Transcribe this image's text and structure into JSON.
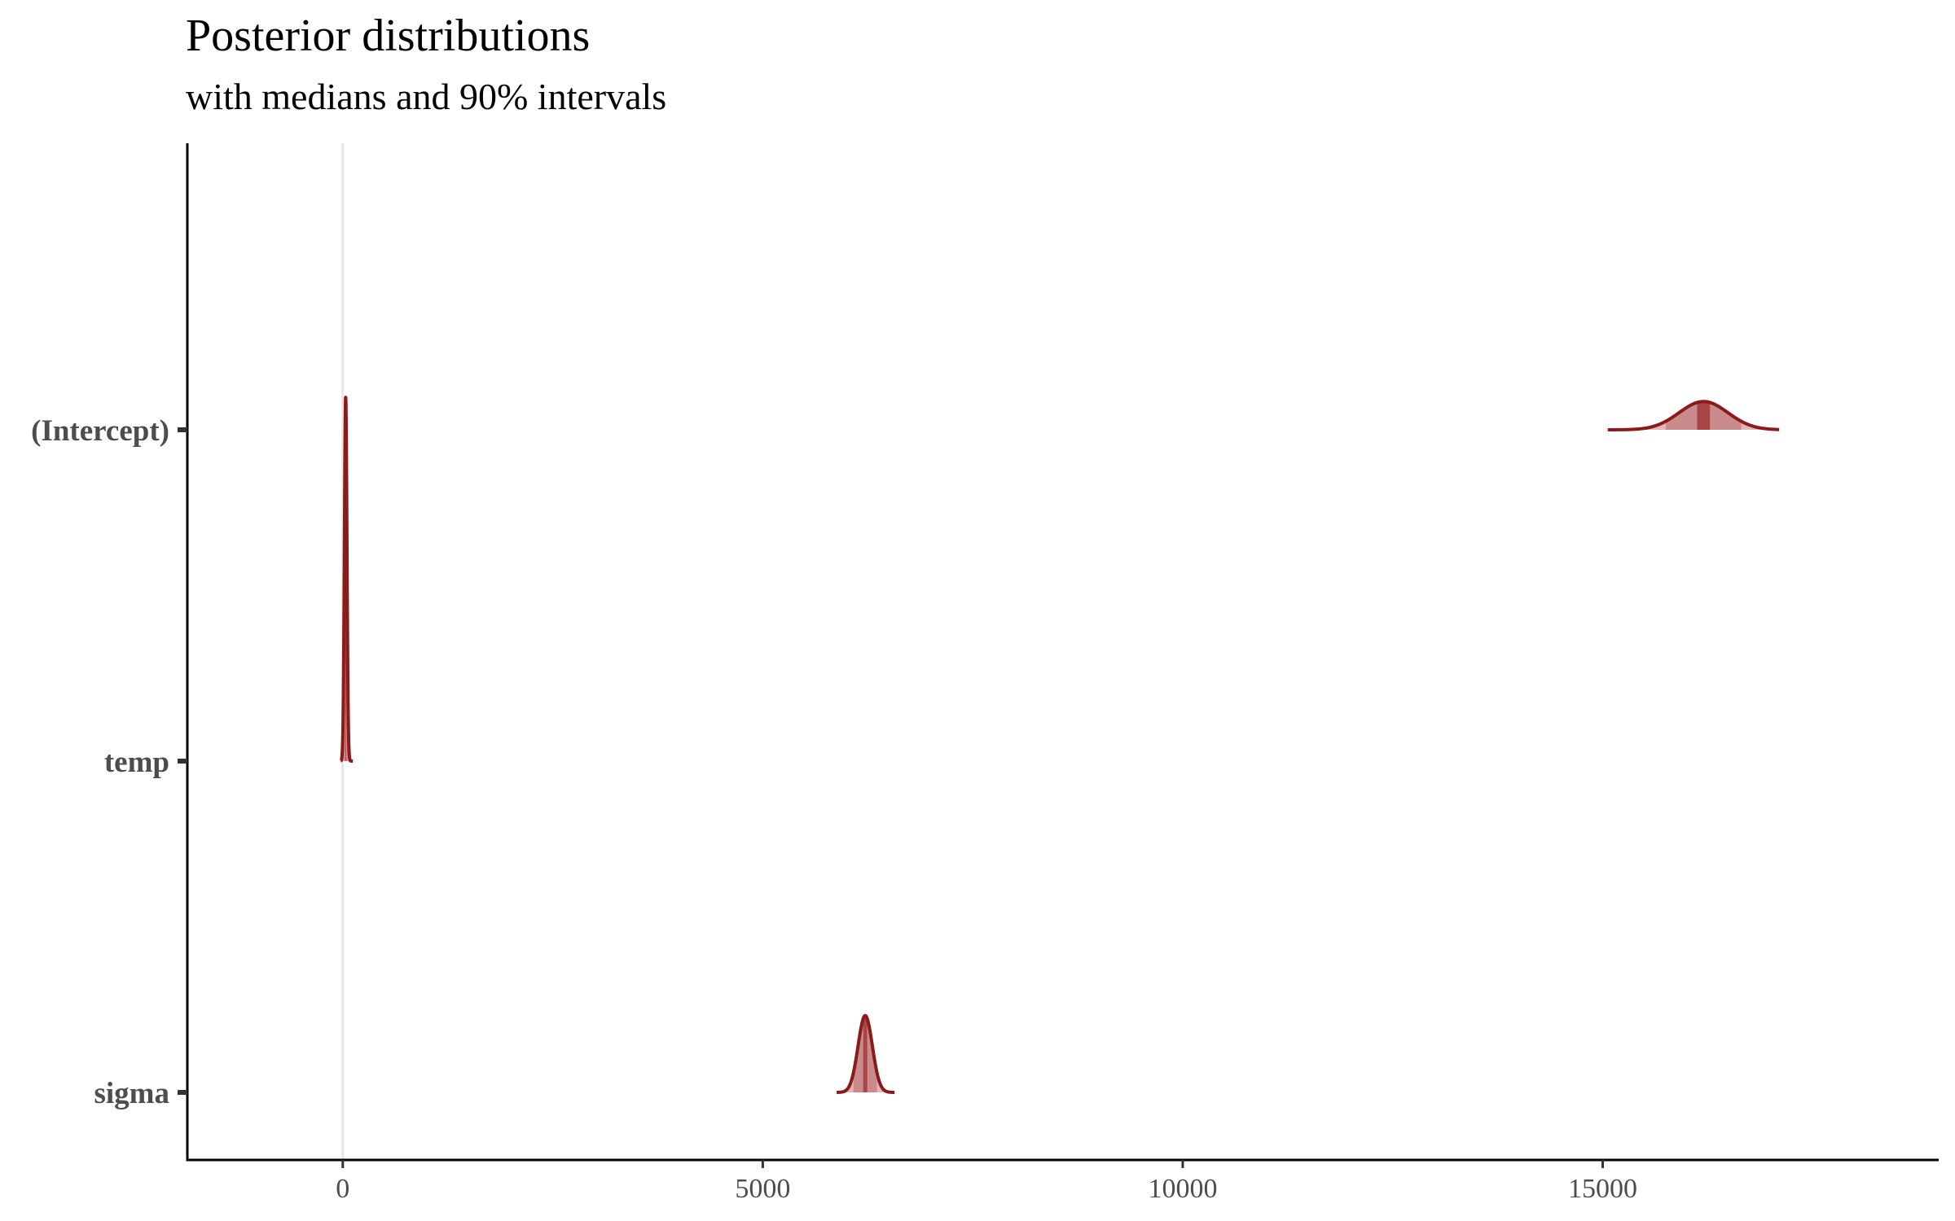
{
  "chart_data": {
    "type": "area",
    "title": "Posterior distributions",
    "subtitle": "with medians and 90% intervals",
    "xlabel": "",
    "ylabel": "",
    "xlim": [
      -1850,
      19000
    ],
    "x_ticks": [
      0,
      5000,
      10000,
      15000
    ],
    "x_tick_labels": [
      "0",
      "5000",
      "10000",
      "15000"
    ],
    "vline_x": 0,
    "grid": false,
    "legend": "none",
    "parameters": [
      "(Intercept)",
      "temp",
      "sigma"
    ],
    "densities": [
      {
        "parameter": "(Intercept)",
        "median": 16200,
        "interval_90": [
          15750,
          16650
        ],
        "sd": 290,
        "range": [
          15060,
          17100
        ],
        "relative_height": 0.07
      },
      {
        "parameter": "temp",
        "median": 35,
        "interval_90": [
          10,
          60
        ],
        "sd": 15,
        "range": [
          -25,
          120
        ],
        "relative_height": 0.9
      },
      {
        "parameter": "sigma",
        "median": 6220,
        "interval_90": [
          6080,
          6360
        ],
        "sd": 85,
        "range": [
          5880,
          6570
        ],
        "relative_height": 0.19
      }
    ],
    "colors": {
      "outline": "#8b1a1a",
      "fill": "#e3b5b5",
      "interval_fill": "#c98b8b",
      "median_fill": "#a84545",
      "vline": "#e6e6e6",
      "axis": "#000000",
      "tick_label": "#4d4d4d"
    }
  }
}
